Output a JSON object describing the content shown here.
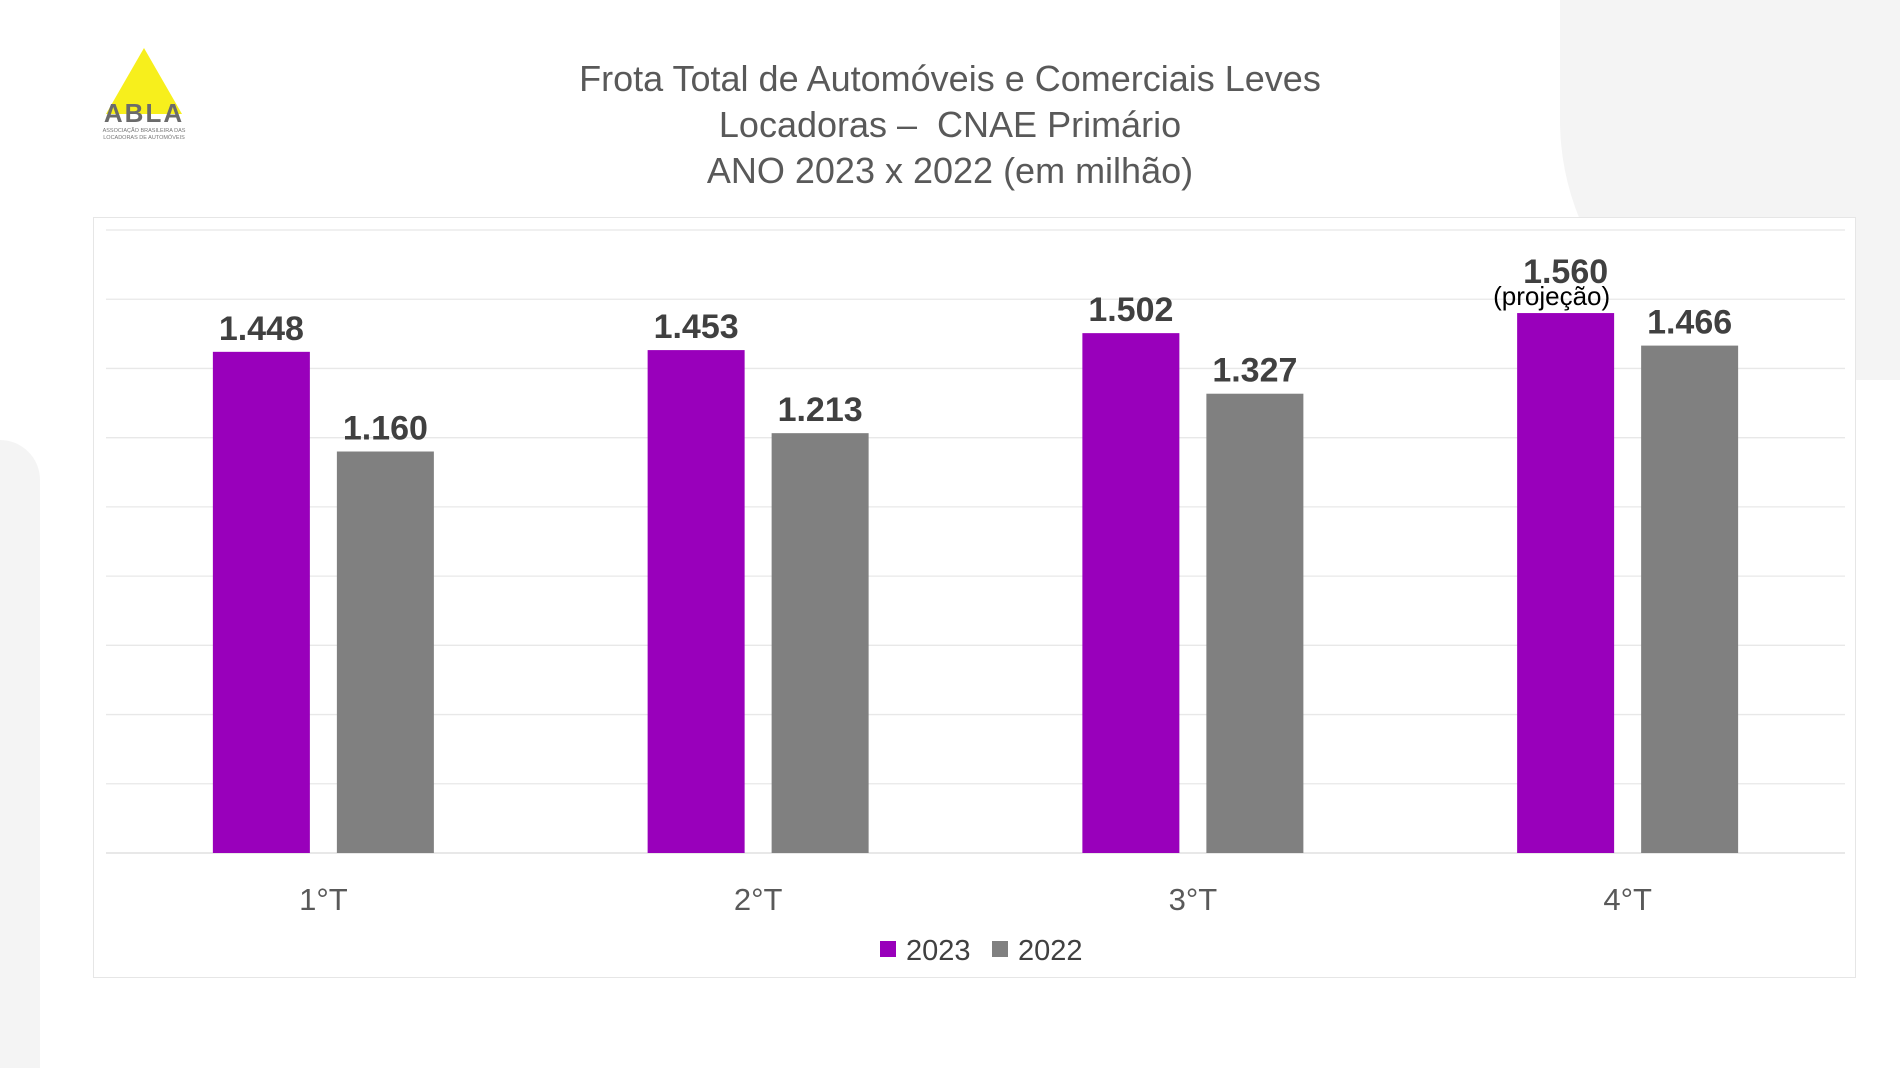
{
  "logo": {
    "text": "ABLA",
    "subtitle": "ASSOCIAÇÃO BRASILEIRA DAS LOCADORAS DE AUTOMÓVEIS"
  },
  "chart_data": {
    "type": "bar",
    "title": [
      "Frota Total de Automóveis e Comerciais Leves",
      "Locadoras –  CNAE Primário",
      "ANO 2023 x 2022 (em milhão)"
    ],
    "categories": [
      "1°T",
      "2°T",
      "3°T",
      "4°T"
    ],
    "series": [
      {
        "name": "2023",
        "color": "#9900BB",
        "values": [
          1.448,
          1.453,
          1.502,
          1.56
        ],
        "labels": [
          "1.448",
          "1.453",
          "1.502",
          "1.560"
        ]
      },
      {
        "name": "2022",
        "color": "#808080",
        "values": [
          1.16,
          1.213,
          1.327,
          1.466
        ],
        "labels": [
          "1.160",
          "1.213",
          "1.327",
          "1.466"
        ]
      }
    ],
    "annotations": [
      {
        "series": "2023",
        "category": "4°T",
        "text": "(projeção)"
      }
    ],
    "ylim": [
      0,
      1.8
    ],
    "grid": true,
    "ygrid_step": 0.2,
    "xlabel": "",
    "ylabel": "",
    "legend": "bottom-center"
  }
}
